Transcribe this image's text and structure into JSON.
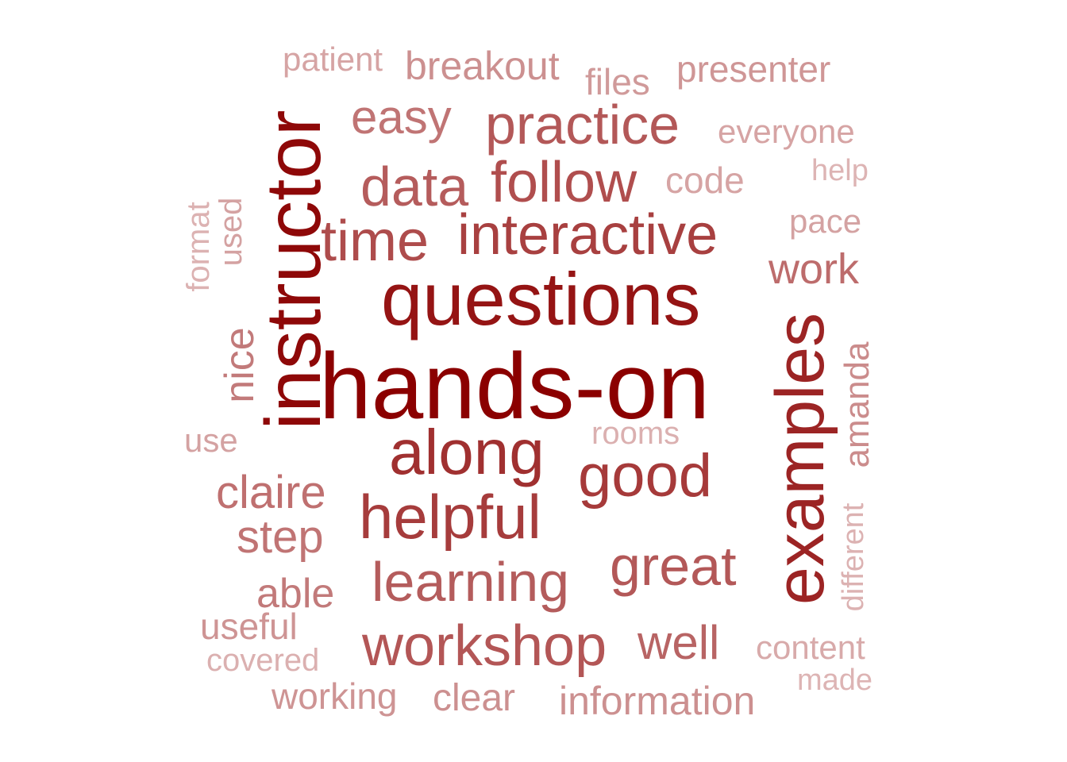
{
  "palette": {
    "darkest": "#8b0000",
    "dark": "#9b1b1b",
    "medium_dark": "#a83c3c",
    "medium": "#b45a5a",
    "light": "#c47c7c",
    "lighter": "#cf9494",
    "lightest": "#dcaeae"
  },
  "words": [
    {
      "text": "hands-on"
    },
    {
      "text": "questions"
    },
    {
      "text": "instructor"
    },
    {
      "text": "examples"
    },
    {
      "text": "along"
    },
    {
      "text": "interactive"
    },
    {
      "text": "helpful"
    },
    {
      "text": "good"
    },
    {
      "text": "time"
    },
    {
      "text": "follow"
    },
    {
      "text": "practice"
    },
    {
      "text": "data"
    },
    {
      "text": "learning"
    },
    {
      "text": "workshop"
    },
    {
      "text": "great"
    },
    {
      "text": "easy"
    },
    {
      "text": "claire"
    },
    {
      "text": "step"
    },
    {
      "text": "well"
    },
    {
      "text": "work"
    },
    {
      "text": "nice"
    },
    {
      "text": "able"
    },
    {
      "text": "amanda"
    },
    {
      "text": "clear"
    },
    {
      "text": "information"
    },
    {
      "text": "useful"
    },
    {
      "text": "working"
    },
    {
      "text": "presenter"
    },
    {
      "text": "breakout"
    },
    {
      "text": "files"
    },
    {
      "text": "everyone"
    },
    {
      "text": "code"
    },
    {
      "text": "patient"
    },
    {
      "text": "pace"
    },
    {
      "text": "content"
    },
    {
      "text": "covered"
    },
    {
      "text": "rooms"
    },
    {
      "text": "use"
    },
    {
      "text": "used"
    },
    {
      "text": "format"
    },
    {
      "text": "different"
    },
    {
      "text": "help"
    },
    {
      "text": "made"
    }
  ]
}
